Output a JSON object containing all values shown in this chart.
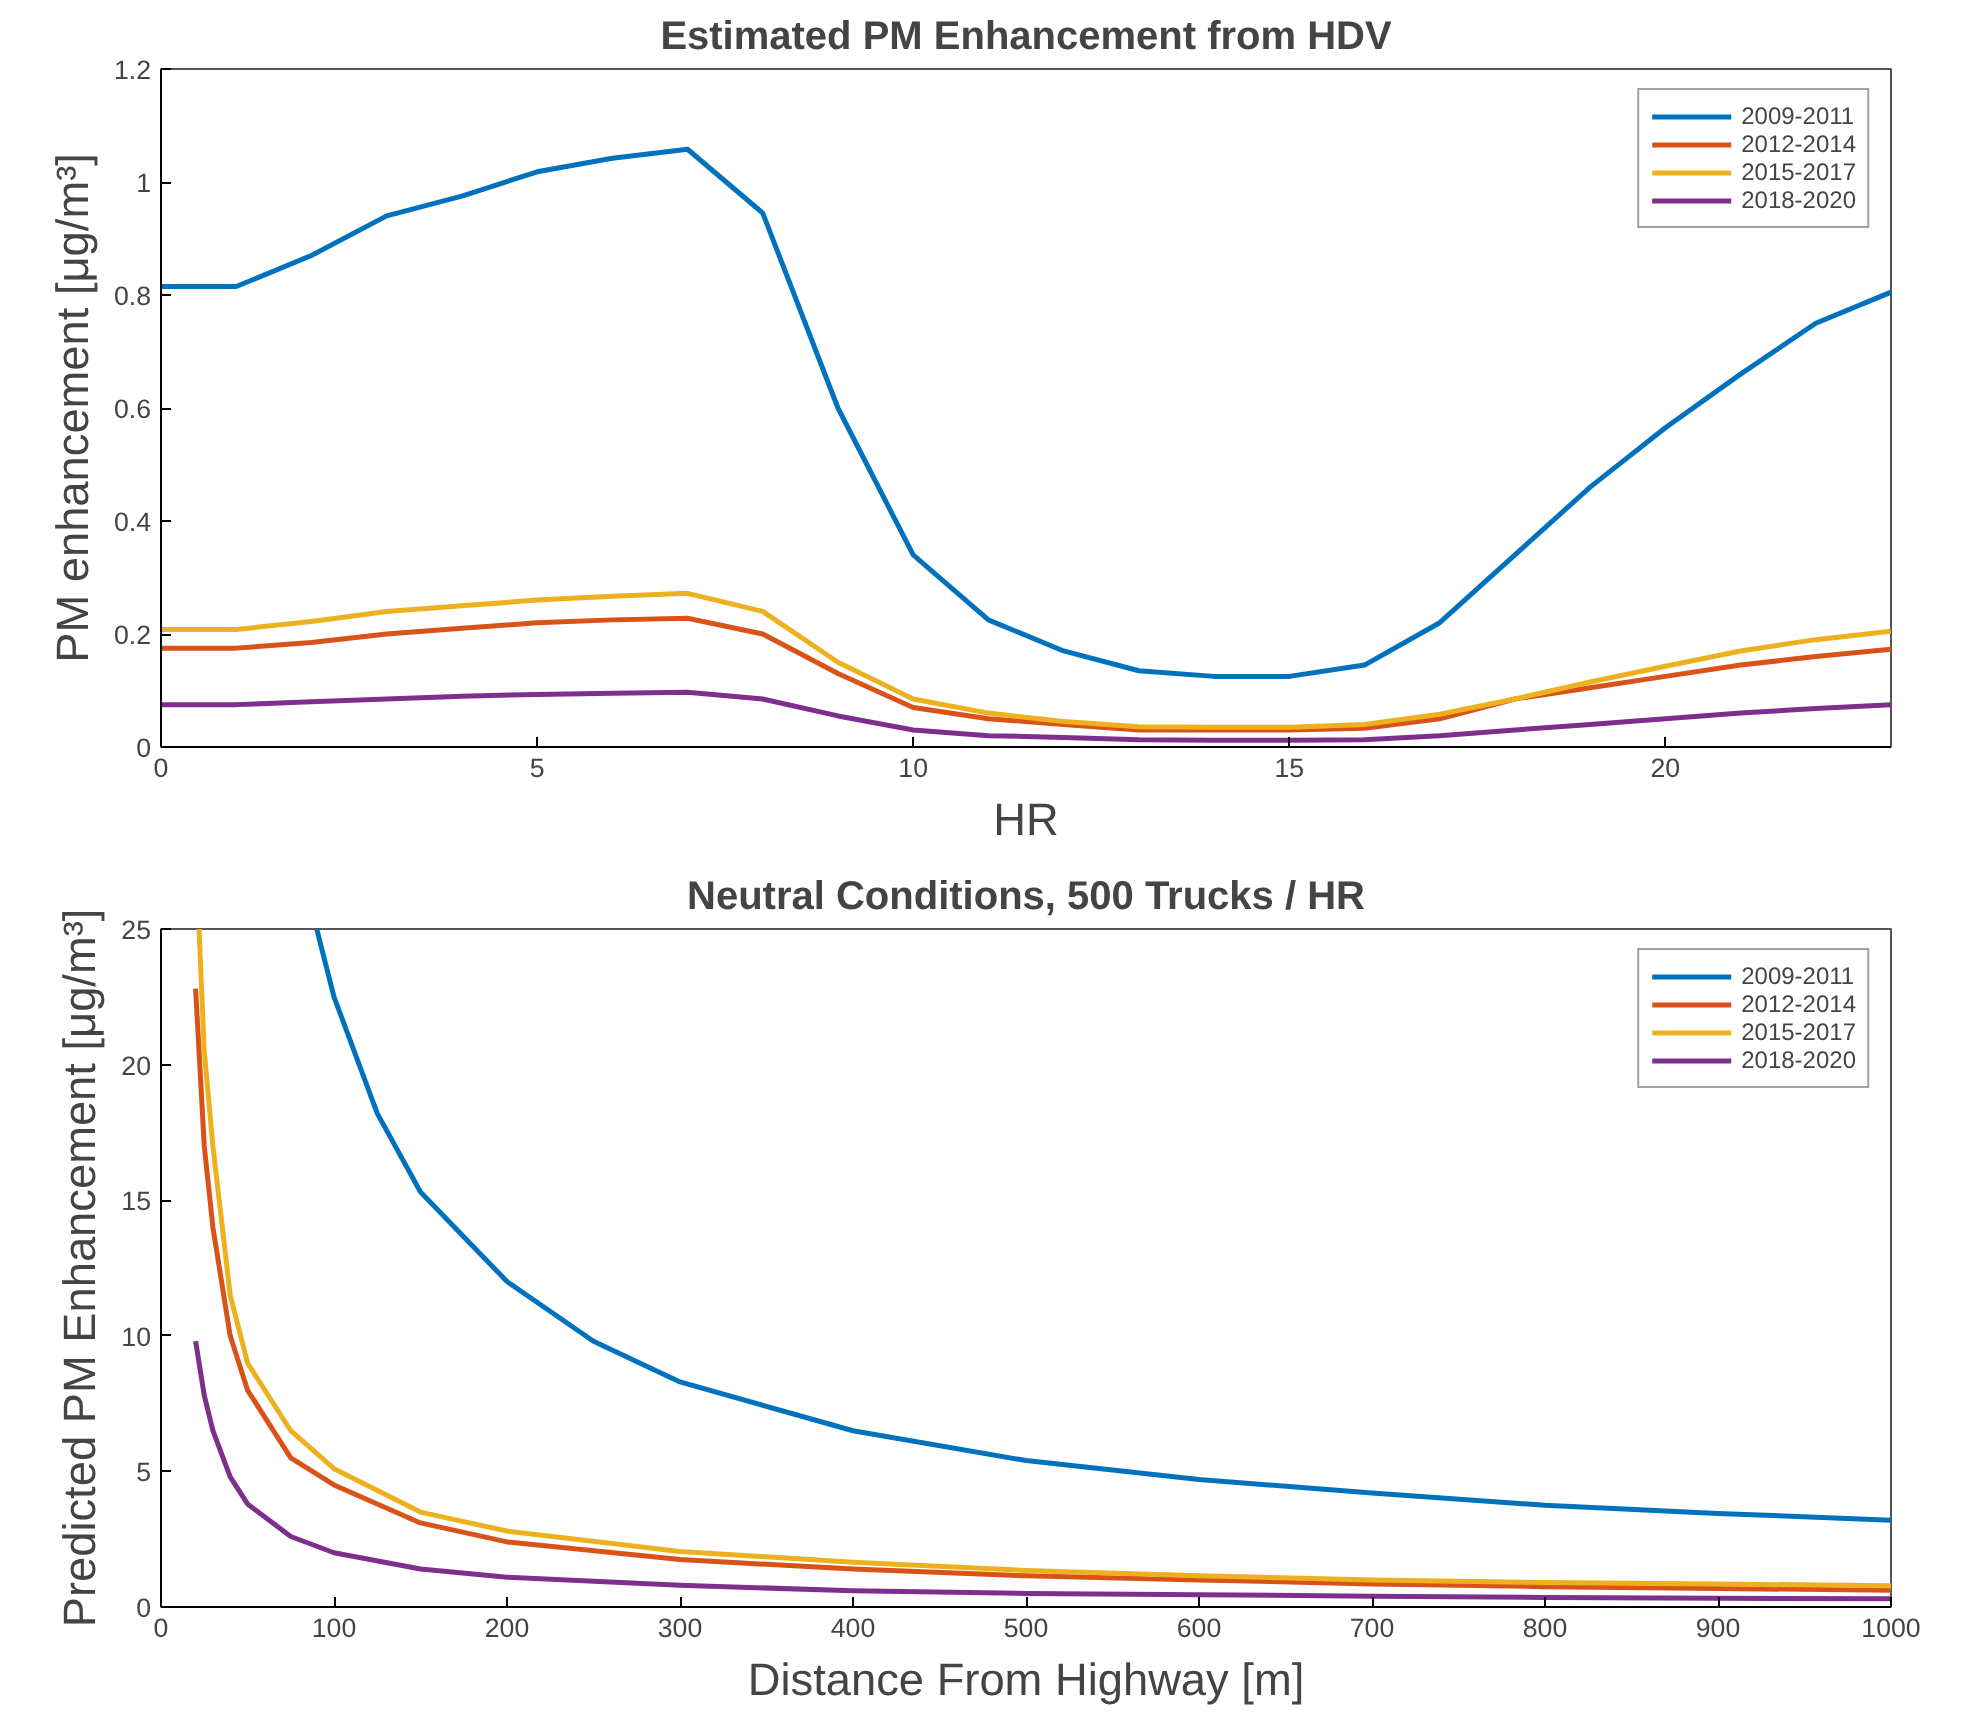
{
  "chart_data": [
    {
      "type": "line",
      "title": "Estimated PM Enhancement from HDV",
      "xlabel": "HR",
      "ylabel": "PM enhancement [μg/m³]",
      "x": [
        0,
        1,
        2,
        3,
        4,
        5,
        6,
        7,
        8,
        9,
        10,
        11,
        12,
        13,
        14,
        15,
        16,
        17,
        18,
        19,
        20,
        21,
        22,
        23
      ],
      "xlim": [
        0,
        23
      ],
      "xticks": [
        0,
        5,
        10,
        15,
        20
      ],
      "ylim": [
        0,
        1.2
      ],
      "yticks": [
        0,
        0.2,
        0.4,
        0.6,
        0.8,
        1,
        1.2
      ],
      "grid": false,
      "legend": "top right",
      "line_style": "solid",
      "series": [
        {
          "name": "2009-2011",
          "color": "#0072bd",
          "values": [
            0.815,
            0.815,
            0.87,
            0.94,
            0.975,
            1.018,
            1.042,
            1.058,
            0.945,
            0.6,
            0.34,
            0.225,
            0.17,
            0.135,
            0.125,
            0.125,
            0.145,
            0.22,
            0.34,
            0.46,
            0.565,
            0.66,
            0.75,
            0.805
          ]
        },
        {
          "name": "2012-2014",
          "color": "#d95319",
          "values": [
            0.175,
            0.175,
            0.185,
            0.2,
            0.21,
            0.22,
            0.225,
            0.228,
            0.2,
            0.13,
            0.07,
            0.05,
            0.04,
            0.03,
            0.03,
            0.03,
            0.033,
            0.05,
            0.085,
            0.105,
            0.125,
            0.145,
            0.16,
            0.173
          ]
        },
        {
          "name": "2015-2017",
          "color": "#edb120",
          "values": [
            0.208,
            0.208,
            0.222,
            0.24,
            0.25,
            0.26,
            0.267,
            0.272,
            0.24,
            0.15,
            0.085,
            0.06,
            0.045,
            0.036,
            0.035,
            0.035,
            0.04,
            0.058,
            0.085,
            0.115,
            0.143,
            0.17,
            0.19,
            0.205
          ]
        },
        {
          "name": "2018-2020",
          "color": "#7e2f8e",
          "values": [
            0.075,
            0.075,
            0.08,
            0.085,
            0.09,
            0.093,
            0.095,
            0.097,
            0.085,
            0.055,
            0.03,
            0.02,
            0.017,
            0.013,
            0.012,
            0.012,
            0.013,
            0.02,
            0.03,
            0.04,
            0.05,
            0.06,
            0.068,
            0.075
          ]
        }
      ]
    },
    {
      "type": "line",
      "title": "Neutral Conditions, 500 Trucks / HR",
      "xlabel": "Distance From Highway [m]",
      "ylabel": "Predicted PM Enhancement [μg/m³]",
      "xlim": [
        0,
        1000
      ],
      "xticks": [
        0,
        100,
        200,
        300,
        400,
        500,
        600,
        700,
        800,
        900,
        1000
      ],
      "ylim": [
        0,
        25
      ],
      "yticks": [
        0,
        5,
        10,
        15,
        20,
        25
      ],
      "grid": false,
      "legend": "top right",
      "line_style": "solid",
      "series": [
        {
          "name": "2009-2011",
          "color": "#0072bd",
          "x": [
            90,
            100,
            125,
            150,
            200,
            250,
            300,
            400,
            500,
            600,
            700,
            800,
            900,
            1000
          ],
          "values": [
            25,
            22.5,
            18.2,
            15.3,
            12,
            9.8,
            8.3,
            6.5,
            5.4,
            4.7,
            4.2,
            3.75,
            3.45,
            3.2
          ]
        },
        {
          "name": "2012-2014",
          "color": "#d95319",
          "x": [
            20,
            25,
            30,
            40,
            50,
            75,
            100,
            150,
            200,
            300,
            400,
            500,
            600,
            700,
            800,
            900,
            1000
          ],
          "values": [
            22.8,
            17,
            14,
            10,
            8,
            5.5,
            4.5,
            3.1,
            2.4,
            1.75,
            1.4,
            1.15,
            1,
            0.85,
            0.75,
            0.68,
            0.62
          ]
        },
        {
          "name": "2015-2017",
          "color": "#edb120",
          "x": [
            22,
            25,
            30,
            40,
            50,
            75,
            100,
            150,
            200,
            300,
            400,
            500,
            600,
            700,
            800,
            900,
            1000
          ],
          "values": [
            25,
            20.5,
            17,
            11.5,
            9,
            6.5,
            5.1,
            3.5,
            2.8,
            2.05,
            1.65,
            1.35,
            1.15,
            1,
            0.9,
            0.85,
            0.78
          ]
        },
        {
          "name": "2018-2020",
          "color": "#7e2f8e",
          "x": [
            20,
            25,
            30,
            40,
            50,
            75,
            100,
            150,
            200,
            300,
            400,
            500,
            600,
            700,
            800,
            900,
            1000
          ],
          "values": [
            9.8,
            7.8,
            6.5,
            4.8,
            3.8,
            2.6,
            2,
            1.4,
            1.1,
            0.8,
            0.6,
            0.5,
            0.45,
            0.4,
            0.35,
            0.32,
            0.3
          ]
        }
      ]
    }
  ]
}
